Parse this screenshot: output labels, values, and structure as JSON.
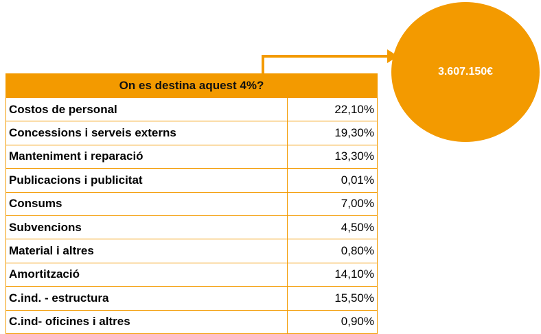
{
  "callout": "3.607.150€",
  "table": {
    "title": "On es destina aquest 4%?",
    "rows": [
      [
        "Costos de personal",
        "22,10%"
      ],
      [
        "Concessions i serveis externs",
        "19,30%"
      ],
      [
        "Manteniment i reparació",
        "13,30%"
      ],
      [
        "Publicacions i publicitat",
        "0,01%"
      ],
      [
        "Consums",
        "7,00%"
      ],
      [
        "Subvencions",
        "4,50%"
      ],
      [
        "Material i altres",
        "0,80%"
      ],
      [
        "Amortització",
        "14,10%"
      ],
      [
        "C.ind. - estructura",
        "15,50%"
      ],
      [
        "C.ind- oficines i altres",
        "0,90%"
      ]
    ]
  }
}
